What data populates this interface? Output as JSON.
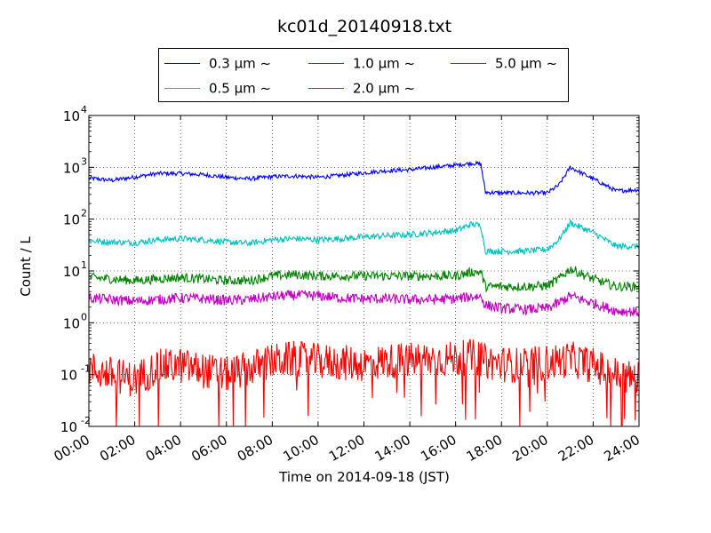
{
  "chart_data": {
    "type": "line",
    "title": "kc01d_20140918.txt",
    "xlabel": "Time on 2014-09-18 (JST)",
    "ylabel": "Count / L",
    "y_scale": "log",
    "ylim": [
      0.01,
      10000
    ],
    "xlim": [
      "00:00",
      "24:00"
    ],
    "x_tick_labels": [
      "00:00",
      "02:00",
      "04:00",
      "06:00",
      "08:00",
      "10:00",
      "12:00",
      "14:00",
      "16:00",
      "18:00",
      "20:00",
      "22:00",
      "24:00"
    ],
    "y_tick_labels": [
      {
        "base": "10",
        "exp": "-2"
      },
      {
        "base": "10",
        "exp": "-1"
      },
      {
        "base": "10",
        "exp": "0"
      },
      {
        "base": "10",
        "exp": "1"
      },
      {
        "base": "10",
        "exp": "2"
      },
      {
        "base": "10",
        "exp": "3"
      },
      {
        "base": "10",
        "exp": "4"
      }
    ],
    "grid": true,
    "legend_position": "top-center, above plot",
    "x_hours": [
      0,
      1,
      2,
      3,
      4,
      5,
      6,
      7,
      8,
      9,
      10,
      11,
      12,
      13,
      14,
      15,
      16,
      16.7,
      17.1,
      17.3,
      18,
      19,
      20,
      20.5,
      21,
      22,
      23,
      24
    ],
    "series": [
      {
        "name": "0.3 µm  ~",
        "color": "#0000ff",
        "values": [
          620,
          560,
          650,
          760,
          760,
          720,
          640,
          600,
          660,
          680,
          640,
          700,
          780,
          860,
          900,
          1000,
          1100,
          1200,
          1150,
          330,
          320,
          320,
          320,
          450,
          1000,
          600,
          350,
          370
        ]
      },
      {
        "name": "0.5 µm  ~",
        "color": "#00bfbf",
        "values": [
          38,
          36,
          35,
          40,
          42,
          40,
          36,
          34,
          40,
          42,
          40,
          42,
          45,
          48,
          50,
          55,
          60,
          80,
          75,
          24,
          24,
          24,
          26,
          40,
          85,
          55,
          30,
          30
        ]
      },
      {
        "name": "1.0 µm  ~",
        "color": "#008000",
        "values": [
          7.5,
          7,
          6.5,
          7,
          7.5,
          7,
          6.5,
          6.5,
          8,
          8.5,
          8,
          8,
          8,
          8,
          8,
          8,
          8,
          9.5,
          9.5,
          5,
          5,
          5,
          5.2,
          7,
          11,
          7,
          5,
          5
        ]
      },
      {
        "name": "2.0 µm  ~",
        "color": "#bf00bf",
        "values": [
          3.0,
          2.8,
          2.6,
          2.8,
          3.0,
          2.9,
          2.7,
          2.8,
          3.2,
          3.4,
          3.3,
          3.0,
          2.9,
          2.9,
          2.8,
          2.8,
          2.9,
          3.2,
          3.2,
          2.2,
          1.9,
          1.8,
          1.9,
          2.4,
          3.3,
          2.4,
          1.7,
          1.6
        ]
      },
      {
        "name": "5.0 µm  ~",
        "color": "#ff0000",
        "values": [
          0.13,
          0.1,
          0.08,
          0.14,
          0.15,
          0.12,
          0.1,
          0.13,
          0.18,
          0.2,
          0.18,
          0.17,
          0.16,
          0.18,
          0.19,
          0.2,
          0.2,
          0.22,
          0.2,
          0.18,
          0.16,
          0.15,
          0.17,
          0.18,
          0.2,
          0.15,
          0.1,
          0.08
        ]
      }
    ]
  }
}
